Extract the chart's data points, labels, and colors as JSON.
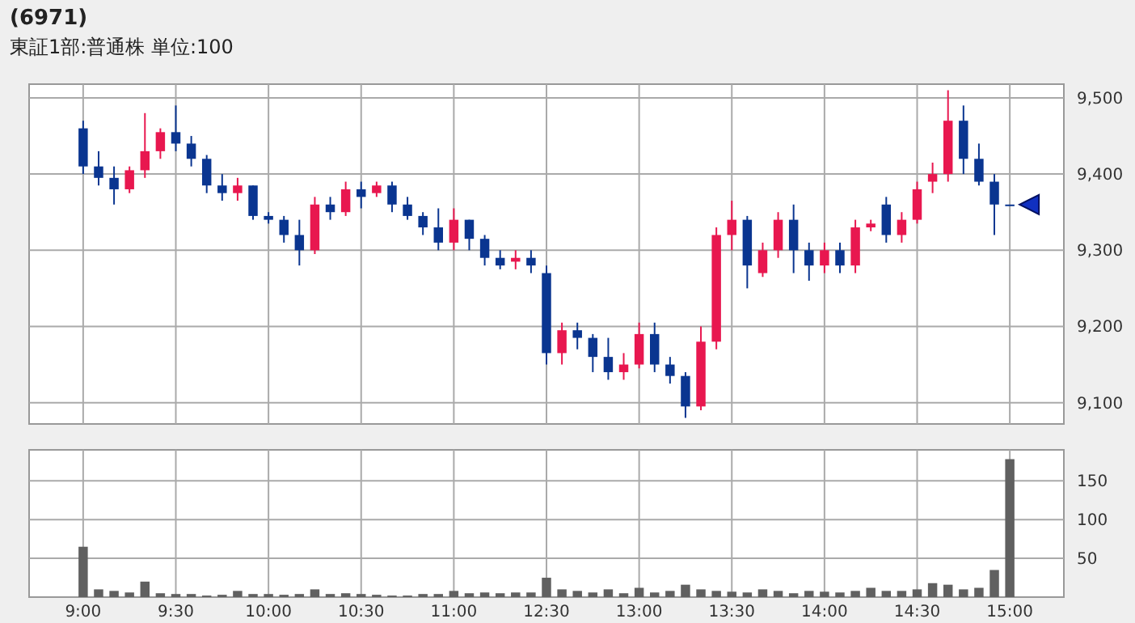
{
  "chart_data": [
    {
      "type": "candlestick",
      "title": "(6971)",
      "subtitle": "東証1部:普通株 単位:100",
      "categories": [
        null,
        null,
        null,
        null,
        null,
        null,
        null,
        null,
        null,
        null,
        null,
        null,
        null,
        null,
        null,
        null,
        null,
        null,
        null,
        null,
        null,
        null,
        null,
        null,
        null,
        null,
        null,
        null,
        null,
        null,
        null,
        null,
        null,
        null,
        null,
        null,
        null,
        null,
        null,
        null,
        null,
        null,
        null,
        null,
        null,
        null,
        null,
        null,
        null,
        null,
        null,
        null,
        null,
        null,
        null,
        null,
        null,
        null,
        null,
        null,
        null
      ],
      "ohlc": [
        [
          9460,
          9470,
          9400,
          9410
        ],
        [
          9410,
          9430,
          9385,
          9395
        ],
        [
          9395,
          9410,
          9360,
          9380
        ],
        [
          9380,
          9410,
          9375,
          9405
        ],
        [
          9405,
          9480,
          9395,
          9430
        ],
        [
          9430,
          9460,
          9420,
          9455
        ],
        [
          9455,
          9490,
          9430,
          9440
        ],
        [
          9440,
          9450,
          9410,
          9420
        ],
        [
          9420,
          9425,
          9375,
          9385
        ],
        [
          9385,
          9400,
          9365,
          9375
        ],
        [
          9375,
          9395,
          9365,
          9385
        ],
        [
          9385,
          9385,
          9340,
          9345
        ],
        [
          9345,
          9350,
          9335,
          9340
        ],
        [
          9340,
          9345,
          9310,
          9320
        ],
        [
          9320,
          9340,
          9280,
          9300
        ],
        [
          9300,
          9370,
          9295,
          9360
        ],
        [
          9360,
          9370,
          9340,
          9350
        ],
        [
          9350,
          9390,
          9345,
          9380
        ],
        [
          9380,
          9390,
          9355,
          9370
        ],
        [
          9375,
          9390,
          9370,
          9385
        ],
        [
          9385,
          9390,
          9350,
          9360
        ],
        [
          9360,
          9370,
          9340,
          9345
        ],
        [
          9345,
          9350,
          9320,
          9330
        ],
        [
          9330,
          9355,
          9300,
          9310
        ],
        [
          9310,
          9355,
          9300,
          9340
        ],
        [
          9340,
          9340,
          9300,
          9315
        ],
        [
          9315,
          9320,
          9280,
          9290
        ],
        [
          9290,
          9300,
          9275,
          9280
        ],
        [
          9285,
          9300,
          9275,
          9290
        ],
        [
          9290,
          9300,
          9270,
          9280
        ],
        [
          9270,
          9280,
          9150,
          9165
        ],
        [
          9165,
          9205,
          9150,
          9195
        ],
        [
          9195,
          9205,
          9170,
          9185
        ],
        [
          9185,
          9190,
          9140,
          9160
        ],
        [
          9160,
          9185,
          9130,
          9140
        ],
        [
          9140,
          9165,
          9130,
          9150
        ],
        [
          9150,
          9205,
          9145,
          9190
        ],
        [
          9190,
          9205,
          9140,
          9150
        ],
        [
          9150,
          9160,
          9125,
          9135
        ],
        [
          9135,
          9140,
          9080,
          9095
        ],
        [
          9095,
          9200,
          9090,
          9180
        ],
        [
          9180,
          9330,
          9170,
          9320
        ],
        [
          9320,
          9365,
          9300,
          9340
        ],
        [
          9340,
          9345,
          9250,
          9280
        ],
        [
          9270,
          9310,
          9265,
          9300
        ],
        [
          9300,
          9350,
          9290,
          9340
        ],
        [
          9340,
          9360,
          9270,
          9300
        ],
        [
          9300,
          9310,
          9260,
          9280
        ],
        [
          9280,
          9310,
          9270,
          9300
        ],
        [
          9300,
          9310,
          9270,
          9280
        ],
        [
          9280,
          9340,
          9270,
          9330
        ],
        [
          9330,
          9340,
          9325,
          9335
        ],
        [
          9360,
          9370,
          9310,
          9320
        ],
        [
          9320,
          9350,
          9310,
          9340
        ],
        [
          9340,
          9390,
          9335,
          9380
        ],
        [
          9390,
          9415,
          9375,
          9400
        ],
        [
          9400,
          9510,
          9390,
          9470
        ],
        [
          9470,
          9490,
          9400,
          9420
        ],
        [
          9420,
          9440,
          9385,
          9390
        ],
        [
          9390,
          9400,
          9320,
          9360
        ],
        [
          9360,
          9360,
          9360,
          9360
        ]
      ],
      "colors": [
        "#0a3590",
        "#0a3590",
        "#0a3590",
        "#e8174f",
        "#e8174f",
        "#e8174f",
        "#0a3590",
        "#0a3590",
        "#0a3590",
        "#0a3590",
        "#e8174f",
        "#0a3590",
        "#0a3590",
        "#0a3590",
        "#0a3590",
        "#e8174f",
        "#0a3590",
        "#e8174f",
        "#0a3590",
        "#e8174f",
        "#0a3590",
        "#0a3590",
        "#0a3590",
        "#0a3590",
        "#e8174f",
        "#0a3590",
        "#0a3590",
        "#0a3590",
        "#e8174f",
        "#0a3590",
        "#0a3590",
        "#e8174f",
        "#0a3590",
        "#0a3590",
        "#0a3590",
        "#e8174f",
        "#e8174f",
        "#0a3590",
        "#0a3590",
        "#0a3590",
        "#e8174f",
        "#e8174f",
        "#e8174f",
        "#0a3590",
        "#e8174f",
        "#e8174f",
        "#0a3590",
        "#0a3590",
        "#e8174f",
        "#0a3590",
        "#e8174f",
        "#e8174f",
        "#0a3590",
        "#e8174f",
        "#e8174f",
        "#e8174f",
        "#e8174f",
        "#0a3590",
        "#0a3590",
        "#0a3590",
        "#0a3590"
      ],
      "ylim": [
        9072,
        9518
      ],
      "yticks": [
        {
          "value": 9100,
          "label": "9,100"
        },
        {
          "value": 9200,
          "label": "9,200"
        },
        {
          "value": 9300,
          "label": "9,300"
        },
        {
          "value": 9400,
          "label": "9,400"
        },
        {
          "value": 9500,
          "label": "9,500"
        }
      ],
      "tick_labels": "y",
      "grid": true
    },
    {
      "type": "bar",
      "categories": [
        "9:00",
        null,
        null,
        null,
        null,
        null,
        "9:30",
        null,
        null,
        null,
        null,
        null,
        "10:00",
        null,
        null,
        null,
        null,
        null,
        "10:30",
        null,
        null,
        null,
        null,
        null,
        "11:00",
        null,
        null,
        null,
        null,
        null,
        "12:30",
        null,
        null,
        null,
        null,
        null,
        "13:00",
        null,
        null,
        null,
        null,
        null,
        "13:30",
        null,
        null,
        null,
        null,
        null,
        "14:00",
        null,
        null,
        null,
        null,
        null,
        "14:30",
        null,
        null,
        null,
        null,
        null,
        "15:00"
      ],
      "values": [
        65,
        10,
        8,
        6,
        20,
        5,
        4,
        4,
        2,
        3,
        8,
        4,
        4,
        3,
        4,
        10,
        4,
        5,
        4,
        3,
        2,
        2,
        4,
        4,
        8,
        5,
        6,
        5,
        6,
        6,
        25,
        10,
        8,
        6,
        10,
        5,
        12,
        6,
        8,
        16,
        10,
        8,
        7,
        6,
        10,
        8,
        5,
        8,
        7,
        6,
        8,
        12,
        8,
        8,
        10,
        18,
        16,
        10,
        12,
        35,
        178
      ],
      "color": "#606060",
      "ylim": [
        0,
        190
      ],
      "yticks": [
        50,
        100,
        150
      ],
      "grid": true
    }
  ]
}
